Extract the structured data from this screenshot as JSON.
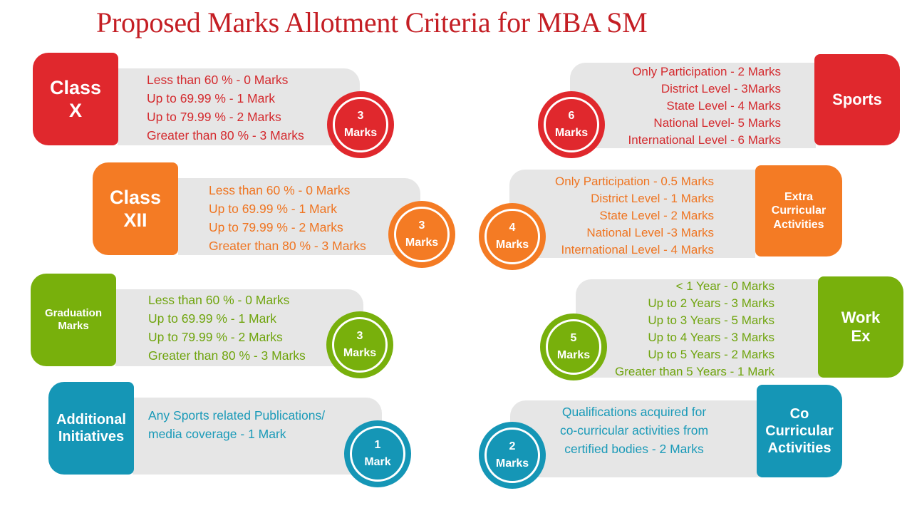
{
  "title": "Proposed Marks Allotment Criteria for MBA SM",
  "colors": {
    "red": "#e0282d",
    "orange": "#f47b24",
    "green": "#78b00c",
    "teal": "#1596b6"
  },
  "left_cards": [
    {
      "label_lines": [
        "Class",
        "X"
      ],
      "criteria": [
        "Less than 60 % - 0 Marks",
        "Up to 69.99 % - 1 Mark",
        "Up to  79.99 % - 2 Marks",
        "Greater than 80 % - 3 Marks"
      ],
      "badge": [
        "3",
        "Marks"
      ]
    },
    {
      "label_lines": [
        "Class",
        "XII"
      ],
      "criteria": [
        "Less than 60 % - 0 Marks",
        "Up to 69.99 % - 1 Mark",
        "Up to  79.99 % - 2 Marks",
        "Greater than 80 % - 3 Marks"
      ],
      "badge": [
        "3",
        "Marks"
      ]
    },
    {
      "label_lines": [
        "Graduation",
        "Marks"
      ],
      "criteria": [
        "Less than 60 % - 0 Marks",
        "Up to 69.99 % - 1 Mark",
        "Up to  79.99 % - 2 Marks",
        "Greater than 80 % - 3 Marks"
      ],
      "badge": [
        "3",
        "Marks"
      ]
    },
    {
      "label_lines": [
        "Additional",
        "Initiatives"
      ],
      "criteria": [
        "Any Sports related Publications/",
        "media coverage  - 1 Mark"
      ],
      "badge": [
        "1",
        "Mark"
      ]
    }
  ],
  "right_cards": [
    {
      "label_lines": [
        "Sports"
      ],
      "criteria": [
        "Only Participation - 2 Marks",
        "District Level  - 3Marks",
        "State Level - 4 Marks",
        "National Level- 5 Marks",
        "International  Level  - 6 Marks"
      ],
      "badge": [
        "6",
        "Marks"
      ]
    },
    {
      "label_lines": [
        "Extra",
        "Curricular",
        "Activities"
      ],
      "criteria": [
        "Only Participation - 0.5 Marks",
        "District Level  - 1 Marks",
        "State Level - 2 Marks",
        "National Level -3 Marks",
        "International Level - 4 Marks"
      ],
      "badge": [
        "4",
        "Marks"
      ]
    },
    {
      "label_lines": [
        "Work",
        "Ex"
      ],
      "criteria": [
        "< 1 Year - 0 Marks",
        "Up to 2 Years - 3 Marks",
        "Up to 3 Years - 5 Marks",
        "Up to 4 Years - 3 Marks",
        "Up to 5 Years - 2 Marks",
        "Greater than 5 Years - 1 Mark"
      ],
      "badge": [
        "5",
        "Marks"
      ]
    },
    {
      "label_lines": [
        "Co",
        "Curricular",
        "Activities"
      ],
      "criteria": [
        "Qualifications acquired for",
        "co-curricular activities  from",
        "certified bodies - 2 Marks"
      ],
      "badge": [
        "2",
        "Marks"
      ]
    }
  ]
}
